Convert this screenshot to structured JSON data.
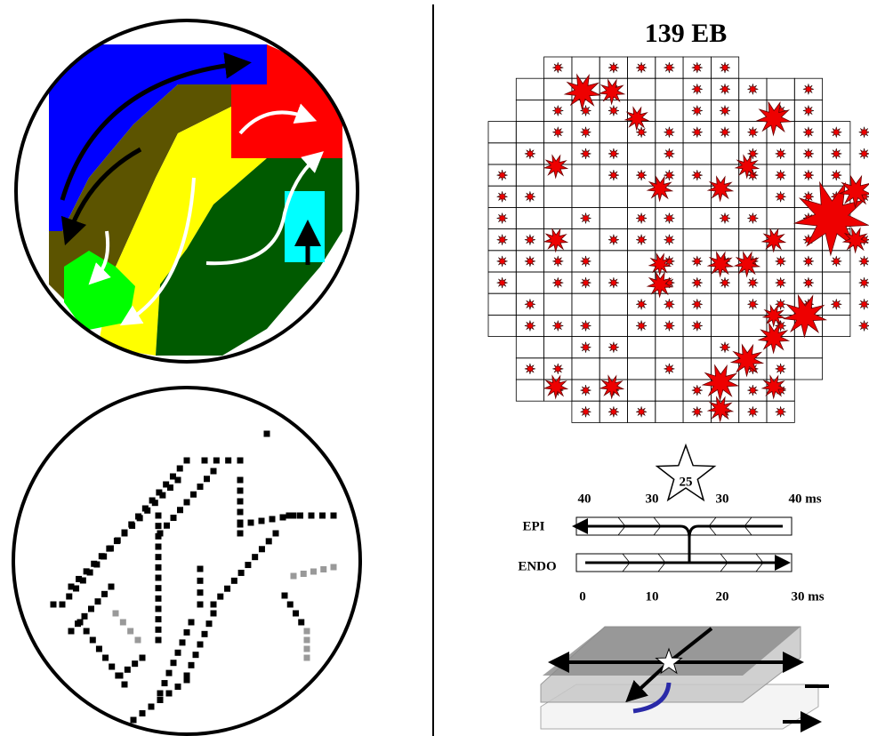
{
  "title": "139 EB",
  "star_label": "25",
  "epi_ticks": [
    "40",
    "30",
    "30",
    "40 ms"
  ],
  "layers": [
    "EPI",
    "ENDO"
  ],
  "endo_ticks": [
    "0",
    "10",
    "20",
    "30 ms"
  ]
}
